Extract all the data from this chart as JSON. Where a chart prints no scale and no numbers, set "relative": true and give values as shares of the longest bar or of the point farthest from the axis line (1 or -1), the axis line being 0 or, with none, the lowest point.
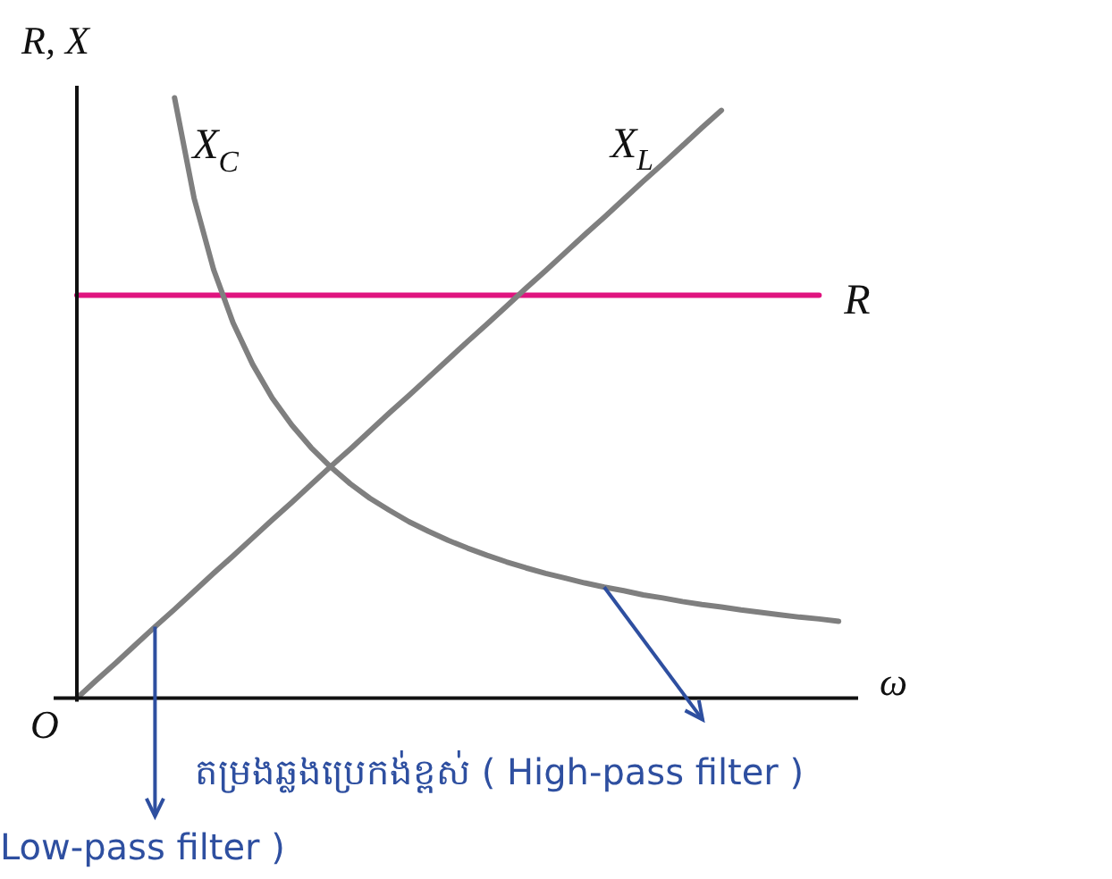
{
  "chart_data": {
    "type": "line",
    "relative": true,
    "xlabel": "ω",
    "ylabel": "R, X",
    "categories": [
      null,
      null,
      null,
      null,
      null,
      null,
      null,
      null,
      null,
      null,
      null,
      null,
      null,
      null,
      null,
      null,
      null,
      null,
      null,
      null,
      null,
      null,
      null,
      null,
      null,
      null,
      null,
      null,
      null,
      null,
      null,
      null,
      null,
      null,
      null,
      null,
      null,
      null,
      null,
      null,
      null
    ],
    "series": [
      {
        "name": "X$_{C}$",
        "color": "#7f7f7f",
        "values": [
          null,
          null,
          null,
          null,
          null,
          1.0,
          0.833,
          0.714,
          0.625,
          0.556,
          0.5,
          0.455,
          0.417,
          0.385,
          0.357,
          0.333,
          0.313,
          0.294,
          0.278,
          0.263,
          0.25,
          0.238,
          0.227,
          0.217,
          0.208,
          0.2,
          0.192,
          0.185,
          0.179,
          0.172,
          0.167,
          0.161,
          0.156,
          0.152,
          0.147,
          0.143,
          0.139,
          0.135,
          0.132,
          0.128,
          null
        ]
      },
      {
        "name": "X$_{L}$",
        "color": "#7f7f7f",
        "values": [
          0,
          0.03,
          0.059,
          0.089,
          0.119,
          0.148,
          0.178,
          0.208,
          0.237,
          0.267,
          0.297,
          0.326,
          0.356,
          0.386,
          0.415,
          0.445,
          0.475,
          0.504,
          0.534,
          0.564,
          0.594,
          0.623,
          0.653,
          0.683,
          0.712,
          0.742,
          0.772,
          0.801,
          0.831,
          0.861,
          0.89,
          0.92,
          0.95,
          0.979,
          null,
          null,
          null,
          null,
          null,
          null,
          null
        ]
      },
      {
        "name": "R",
        "color": "#e0147f",
        "values": [
          0.671,
          0.671,
          0.671,
          0.671,
          0.671,
          0.671,
          0.671,
          0.671,
          0.671,
          0.671,
          0.671,
          0.671,
          0.671,
          0.671,
          0.671,
          0.671,
          0.671,
          0.671,
          0.671,
          0.671,
          0.671,
          0.671,
          0.671,
          0.671,
          0.671,
          0.671,
          0.671,
          0.671,
          0.671,
          0.671,
          0.671,
          0.671,
          0.671,
          0.671,
          0.671,
          0.671,
          0.671,
          0.671,
          0.671,
          null,
          null
        ]
      }
    ],
    "annotations": [
      "O",
      "តម្រងឆ្លងប្រេកង់ខ្ពស់ ( High-pass filter )",
      "Low-pass filter )"
    ],
    "marker": "none",
    "line_style": "solid",
    "legend": false
  }
}
